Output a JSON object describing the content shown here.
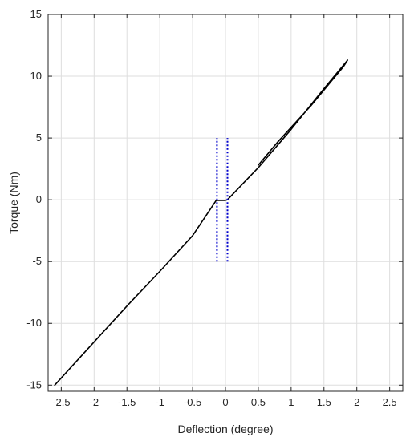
{
  "chart_data": {
    "type": "line",
    "xlabel": "Deflection (degree)",
    "ylabel": "Torque (Nm)",
    "xlim": [
      -2.7,
      2.7
    ],
    "ylim": [
      -15.5,
      15
    ],
    "grid": true,
    "x_ticks": [
      -2.5,
      -2,
      -1.5,
      -1,
      -0.5,
      0,
      0.5,
      1,
      1.5,
      2,
      2.5
    ],
    "x_tick_labels": [
      "-2.5",
      "-2",
      "-1.5",
      "-1",
      "-0.5",
      "0",
      "0.5",
      "1",
      "1.5",
      "2",
      "2.5"
    ],
    "y_ticks": [
      -15,
      -10,
      -5,
      0,
      5,
      10,
      15
    ],
    "y_tick_labels": [
      "-15",
      "-10",
      "-5",
      "0",
      "5",
      "10",
      "15"
    ],
    "series": [
      {
        "color": "#000000",
        "style": "solid",
        "points": [
          [
            -2.6,
            -15.0
          ],
          [
            -2.0,
            -11.5
          ],
          [
            -1.5,
            -8.6
          ],
          [
            -1.0,
            -5.8
          ],
          [
            -0.5,
            -2.9
          ],
          [
            -0.14,
            -0.05
          ],
          [
            0.0,
            -0.05
          ],
          [
            0.03,
            0.0
          ],
          [
            0.5,
            2.6
          ],
          [
            1.0,
            5.7
          ],
          [
            1.5,
            9.0
          ],
          [
            1.86,
            11.3
          ],
          [
            1.8,
            10.8
          ],
          [
            1.3,
            7.6
          ],
          [
            0.8,
            4.7
          ],
          [
            0.5,
            2.8
          ]
        ]
      },
      {
        "color": "#0000cc",
        "style": "dotted",
        "points": [
          [
            -0.13,
            -5.0
          ],
          [
            -0.13,
            5.0
          ]
        ]
      },
      {
        "color": "#0000cc",
        "style": "dotted",
        "points": [
          [
            0.03,
            -5.0
          ],
          [
            0.03,
            5.0
          ]
        ]
      }
    ]
  }
}
